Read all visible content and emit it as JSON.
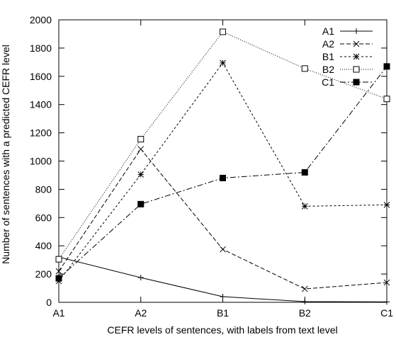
{
  "chart_data": {
    "type": "line",
    "title": "",
    "xlabel": "CEFR levels of sentences, with labels from text level",
    "ylabel": "Number of sentences with a predicted CEFR level",
    "categories": [
      "A1",
      "A2",
      "B1",
      "B2",
      "C1"
    ],
    "ylim": [
      0,
      2000
    ],
    "yticks": [
      0,
      200,
      400,
      600,
      800,
      1000,
      1200,
      1400,
      1600,
      1800,
      2000
    ],
    "grid": false,
    "legend_position": "top-right",
    "series": [
      {
        "name": "A1",
        "marker": "plus",
        "dash": "solid",
        "values": [
          320,
          175,
          40,
          5,
          3
        ]
      },
      {
        "name": "A2",
        "marker": "cross",
        "dash": "dashed",
        "values": [
          220,
          1085,
          375,
          95,
          140
        ]
      },
      {
        "name": "B1",
        "marker": "star",
        "dash": "short-dashed",
        "values": [
          150,
          905,
          1695,
          680,
          690
        ]
      },
      {
        "name": "B2",
        "marker": "open-square",
        "dash": "dotted",
        "values": [
          305,
          1155,
          1915,
          1655,
          1440
        ]
      },
      {
        "name": "C1",
        "marker": "filled-square",
        "dash": "dash-dot",
        "values": [
          170,
          695,
          880,
          920,
          1670
        ]
      }
    ]
  }
}
